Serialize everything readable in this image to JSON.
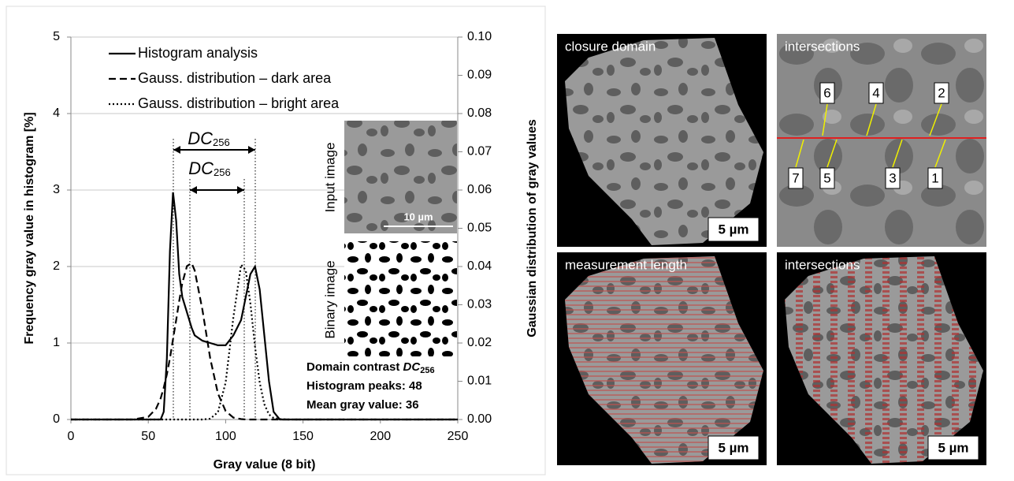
{
  "chart_data": {
    "type": "line",
    "xlabel": "Gray value (8 bit)",
    "ylabel": "Frequency gray value in histogram [%]",
    "y2label": "Gaussian distribution of gray values",
    "x": [
      0,
      40,
      50,
      55,
      58,
      60,
      62,
      64,
      66,
      68,
      70,
      72,
      75,
      78,
      80,
      85,
      90,
      95,
      100,
      105,
      110,
      113,
      116,
      119,
      122,
      125,
      128,
      131,
      135,
      140,
      150,
      250
    ],
    "series": [
      {
        "name": "Histogram analysis",
        "color": "#000000",
        "style": "solid",
        "values": [
          0,
          0,
          0,
          0,
          0,
          0.1,
          0.8,
          2.2,
          2.97,
          2.6,
          1.9,
          1.6,
          1.4,
          1.2,
          1.1,
          1.03,
          1.0,
          0.97,
          0.97,
          1.1,
          1.3,
          1.6,
          1.9,
          2.0,
          1.7,
          1.1,
          0.5,
          0.1,
          0,
          0,
          0,
          0
        ]
      },
      {
        "name": "Gauss. distribution – dark area",
        "color": "#000000",
        "style": "dashed",
        "axis": "y2",
        "values": [
          0,
          0,
          0.0007,
          0.0028,
          0.0055,
          0.0083,
          0.0118,
          0.016,
          0.021,
          0.026,
          0.031,
          0.0357,
          0.0401,
          0.0409,
          0.039,
          0.0287,
          0.016,
          0.0068,
          0.0022,
          0.0005,
          0.0001,
          0,
          0,
          0,
          0,
          0,
          0,
          0,
          0,
          0,
          0,
          0
        ]
      },
      {
        "name": "Gauss. distribution – bright area",
        "color": "#000000",
        "style": "dotted",
        "axis": "y2",
        "values": [
          0,
          0,
          0,
          0,
          0,
          0,
          0,
          0,
          0,
          0,
          0,
          0,
          0,
          0,
          0,
          0,
          0.0002,
          0.0019,
          0.0097,
          0.0267,
          0.0405,
          0.039,
          0.0304,
          0.019,
          0.0097,
          0.004,
          0.0013,
          0.0004,
          0.0001,
          0,
          0,
          0
        ]
      }
    ],
    "xlim": [
      0,
      250
    ],
    "xticks": [
      0,
      50,
      100,
      150,
      200,
      250
    ],
    "ylim": [
      0,
      5
    ],
    "yticks": [
      0,
      1,
      2,
      3,
      4,
      5
    ],
    "y2lim": [
      0,
      0.1
    ],
    "y2ticks": [
      {
        "value": 0,
        "label": "0.00"
      },
      {
        "value": 0.01,
        "label": "0.01"
      },
      {
        "value": 0.02,
        "label": "0.02"
      },
      {
        "value": 0.03,
        "label": "0.03"
      },
      {
        "value": 0.04,
        "label": "0.04"
      },
      {
        "value": 0.05,
        "label": "0.05"
      },
      {
        "value": 0.06,
        "label": "0.06"
      },
      {
        "value": 0.07,
        "label": "0.07"
      },
      {
        "value": 0.08,
        "label": "0.08"
      },
      {
        "value": 0.09,
        "label": "0.09"
      },
      {
        "value": 0.1,
        "label": "0.10"
      }
    ],
    "grid": true,
    "legend": "top-left",
    "annotations": {
      "dc_main": "DC",
      "dc_sub": "256",
      "box_line1": "Domain contrast ",
      "box_line2": "Histogram peaks: 48",
      "box_line3": "Mean gray value:  36",
      "input_label": "Input image",
      "binary_label": "Binary image",
      "input_scale": "10 µm"
    }
  },
  "panels": [
    {
      "label": "closure domain",
      "scale": "5 µm"
    },
    {
      "label": "intersections",
      "markers": [
        "6",
        "4",
        "2",
        "7",
        "5",
        "3",
        "1"
      ]
    },
    {
      "label": "measurement length",
      "scale": "5 µm"
    },
    {
      "label": "intersections",
      "scale": "5 µm"
    }
  ]
}
